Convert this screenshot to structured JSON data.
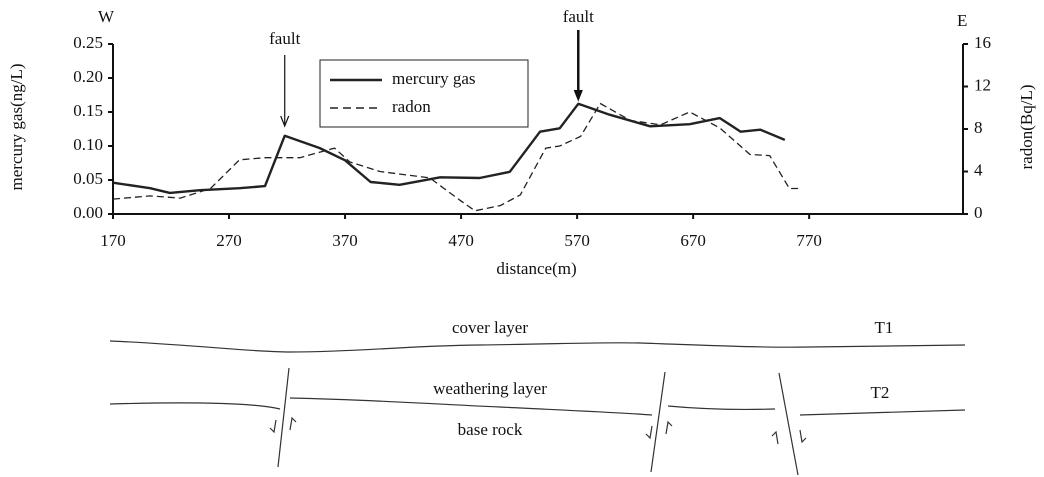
{
  "chart_data": {
    "type": "line",
    "west_label": "W",
    "east_label": "E",
    "xlabel": "distance(m)",
    "ylabel": "mercury gas(ng/L)",
    "y2label": "radon(Bq/L)",
    "xlim": [
      170,
      900
    ],
    "xticks": [
      170,
      270,
      370,
      470,
      570,
      670,
      770
    ],
    "ylim": [
      0,
      0.25
    ],
    "yticks": [
      {
        "value": 0,
        "label": "0.00"
      },
      {
        "value": 0.05,
        "label": "0.05"
      },
      {
        "value": 0.1,
        "label": "0.10"
      },
      {
        "value": 0.15,
        "label": "0.15"
      },
      {
        "value": 0.2,
        "label": "0.20"
      },
      {
        "value": 0.25,
        "label": "0.25"
      }
    ],
    "y2lim": [
      0,
      16
    ],
    "y2ticks": [
      0,
      4,
      8,
      12,
      16
    ],
    "annotations": [
      {
        "text": "fault",
        "x": 318
      },
      {
        "text": "fault",
        "x": 571
      }
    ],
    "series": [
      {
        "name": "mercury gas",
        "color": "#222222",
        "style": "solid",
        "x": [
          170,
          202,
          219,
          245,
          279,
          301,
          318,
          348,
          370,
          392,
          417,
          452,
          486,
          512,
          538,
          555,
          571,
          598,
          633,
          667,
          693,
          711,
          728,
          749
        ],
        "values": [
          0.046,
          0.038,
          0.031,
          0.035,
          0.038,
          0.041,
          0.115,
          0.097,
          0.079,
          0.047,
          0.043,
          0.054,
          0.053,
          0.062,
          0.121,
          0.126,
          0.162,
          0.146,
          0.129,
          0.132,
          0.141,
          0.121,
          0.124,
          0.109
        ]
      },
      {
        "name": "radon",
        "color": "#222222",
        "style": "dashed",
        "axis": "y2",
        "x": [
          170,
          202,
          228,
          254,
          279,
          301,
          331,
          361,
          374,
          400,
          443,
          469,
          482,
          504,
          521,
          543,
          555,
          573,
          590,
          616,
          642,
          667,
          693,
          719,
          736,
          753,
          762
        ],
        "values": [
          1.4,
          1.7,
          1.5,
          2.4,
          5.1,
          5.3,
          5.3,
          6.2,
          4.9,
          4.0,
          3.4,
          1.3,
          0.3,
          0.8,
          1.8,
          6.2,
          6.4,
          7.3,
          10.4,
          8.8,
          8.4,
          9.6,
          8.1,
          5.6,
          5.5,
          2.4,
          2.4
        ]
      }
    ]
  },
  "diagram": {
    "cover_label": "cover layer",
    "t1_label": "T1",
    "weathering_label": "weathering layer",
    "t2_label": "T2",
    "base_label": "base rock"
  }
}
